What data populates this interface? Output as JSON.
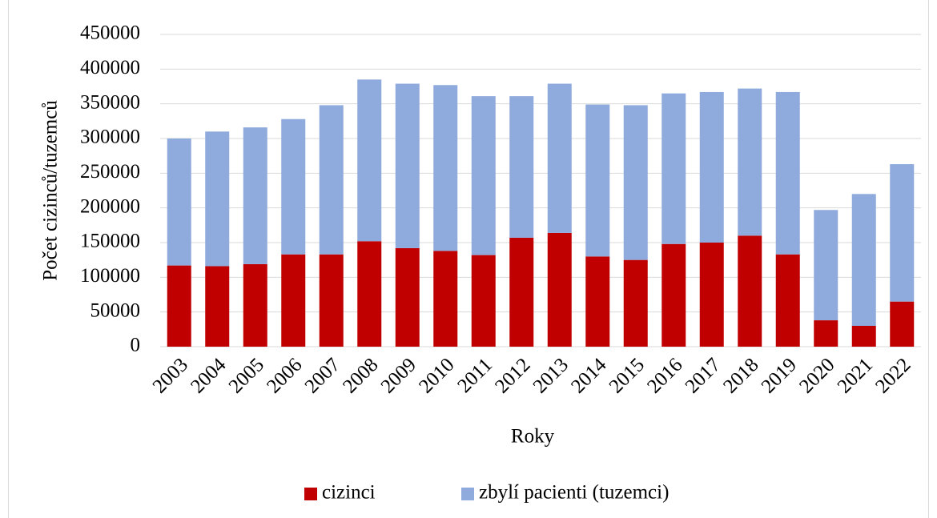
{
  "chart_data": {
    "type": "stacked_bar",
    "x_label": "Roky",
    "y_label": "Počet cizinců/tuzemců",
    "categories": [
      "2003",
      "2004",
      "2005",
      "2006",
      "2007",
      "2008",
      "2009",
      "2010",
      "2011",
      "2012",
      "2013",
      "2014",
      "2015",
      "2016",
      "2017",
      "2018",
      "2019",
      "2020",
      "2021",
      "2022"
    ],
    "series": [
      {
        "name": "cizinci",
        "color": "#c00000",
        "values": [
          117000,
          116000,
          119000,
          133000,
          133000,
          152000,
          142000,
          138000,
          132000,
          157000,
          164000,
          130000,
          125000,
          148000,
          150000,
          160000,
          133000,
          38000,
          30000,
          65000
        ]
      },
      {
        "name": "zbylí pacienti (tuzemci)",
        "color": "#8faadc",
        "values": [
          183000,
          194000,
          197000,
          195000,
          215000,
          233000,
          237000,
          239000,
          229000,
          204000,
          215000,
          219000,
          223000,
          217000,
          217000,
          212000,
          234000,
          159000,
          190000,
          198000
        ]
      }
    ],
    "ylim": [
      0,
      450000
    ],
    "yticks": [
      0,
      50000,
      100000,
      150000,
      200000,
      250000,
      300000,
      350000,
      400000,
      450000
    ],
    "grid": true,
    "legend": "bottom"
  }
}
